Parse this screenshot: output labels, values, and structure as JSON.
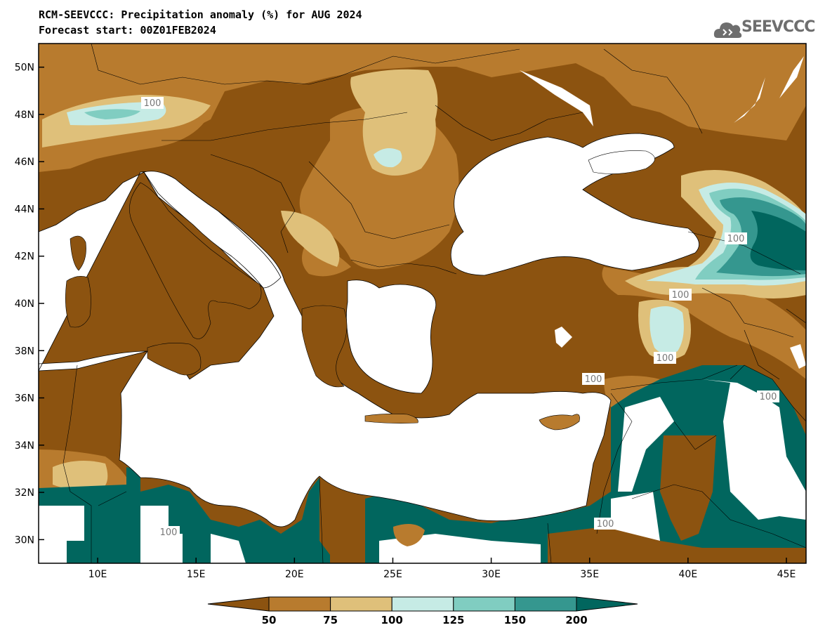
{
  "header": {
    "title_line1": "RCM-SEEVCCC: Precipitation anomaly (%) for AUG 2024",
    "title_line2": "Forecast start: 00Z01FEB2024",
    "logo_text": "SEEVCCC"
  },
  "axes": {
    "lon_ticks": [
      {
        "value": 10,
        "label": "10E"
      },
      {
        "value": 15,
        "label": "15E"
      },
      {
        "value": 20,
        "label": "20E"
      },
      {
        "value": 25,
        "label": "25E"
      },
      {
        "value": 30,
        "label": "30E"
      },
      {
        "value": 35,
        "label": "35E"
      },
      {
        "value": 40,
        "label": "40E"
      },
      {
        "value": 45,
        "label": "45E"
      }
    ],
    "lat_ticks": [
      {
        "value": 30,
        "label": "30N"
      },
      {
        "value": 32,
        "label": "32N"
      },
      {
        "value": 34,
        "label": "34N"
      },
      {
        "value": 36,
        "label": "36N"
      },
      {
        "value": 38,
        "label": "38N"
      },
      {
        "value": 40,
        "label": "40N"
      },
      {
        "value": 42,
        "label": "42N"
      },
      {
        "value": 44,
        "label": "44N"
      },
      {
        "value": 46,
        "label": "46N"
      },
      {
        "value": 48,
        "label": "48N"
      },
      {
        "value": 50,
        "label": "50N"
      }
    ],
    "lon_range": [
      7,
      46
    ],
    "lat_range": [
      29,
      51
    ]
  },
  "colorbar": {
    "labels": [
      "50",
      "75",
      "100",
      "125",
      "150",
      "200"
    ],
    "colors": {
      "below50": "#8c5310",
      "c50_75": "#b87b2e",
      "c75_100": "#dfc07a",
      "c100_125": "#c6ebe5",
      "c125_150": "#80cdc1",
      "c150_200": "#35978f",
      "above200": "#01665e"
    }
  },
  "contour_labels": [
    "100",
    "100",
    "100",
    "100",
    "100",
    "100",
    "100",
    "100"
  ]
}
